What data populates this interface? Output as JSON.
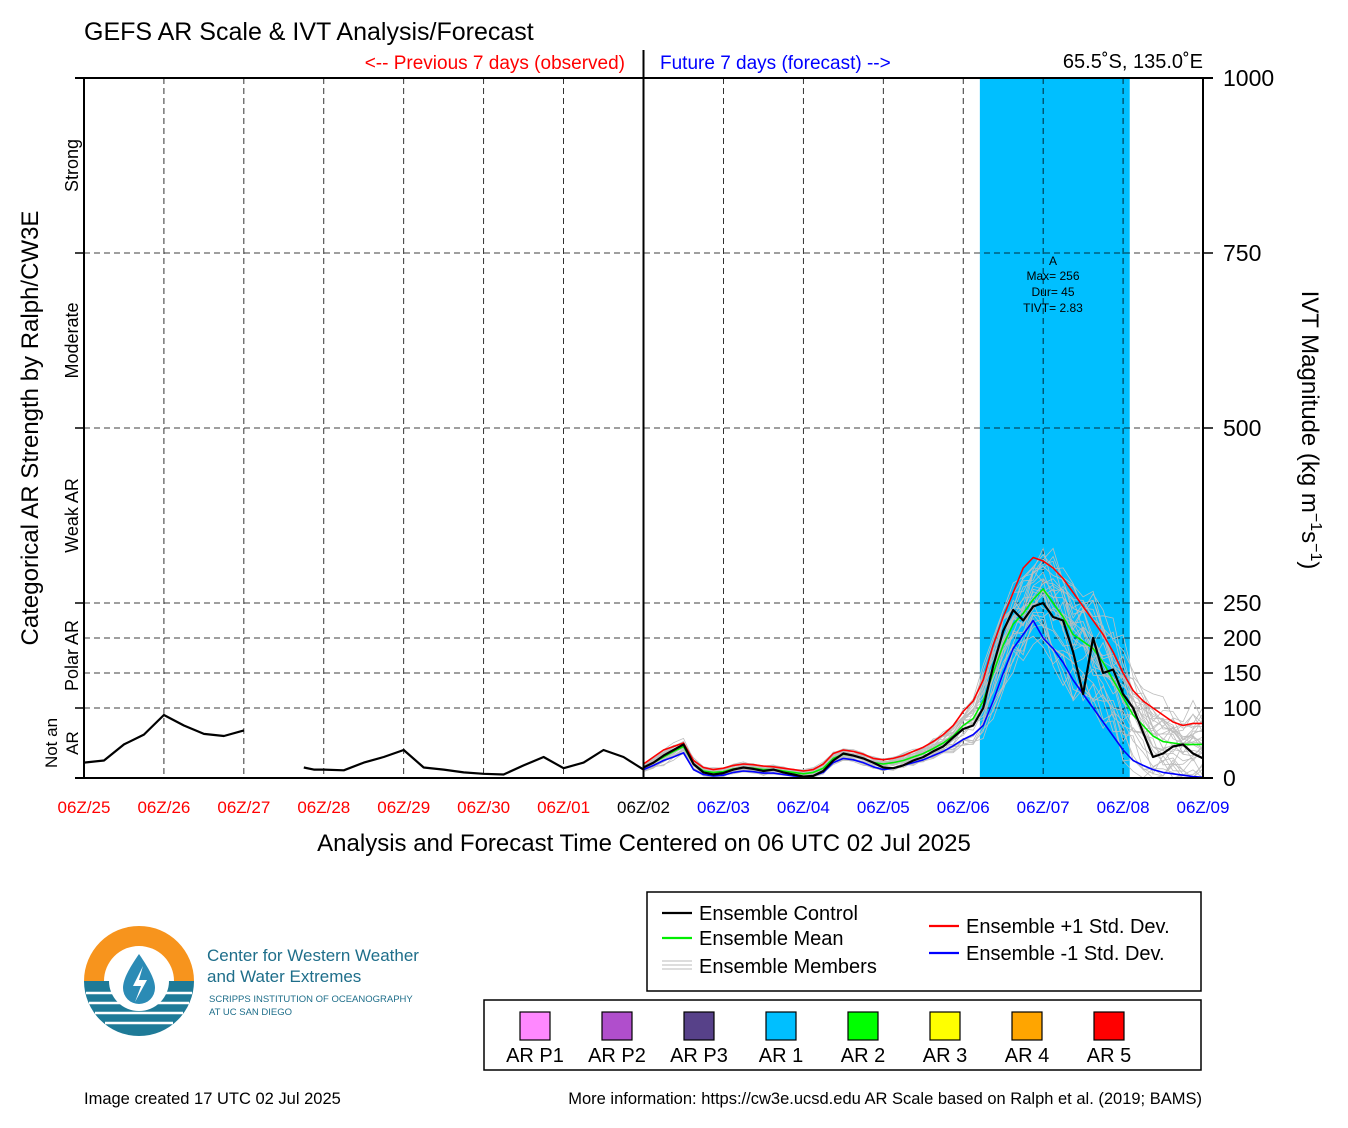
{
  "chart_data": {
    "type": "line",
    "title": "GEFS AR Scale & IVT Analysis/Forecast",
    "location": "65.5˚S, 135.0˚E",
    "previous_label": "<-- Previous 7 days (observed)",
    "future_label": "Future 7 days (forecast) -->",
    "xlabel": "Analysis and Forecast Time Centered on 06 UTC 02 Jul 2025",
    "ylabel_left": "Categorical AR Strength by Ralph/CW3E",
    "ylabel_right": "IVT Magnitude (kg m",
    "ylabel_right_sup1": "−1",
    "ylabel_right_mid": "s",
    "ylabel_right_sup2": "−1",
    "ylabel_right_end": ")",
    "xlim_hours": [
      -168,
      168
    ],
    "ylim": [
      0,
      1000
    ],
    "x_ticks": [
      {
        "label": "06Z/25",
        "hour": -168,
        "color": "#ff0000"
      },
      {
        "label": "06Z/26",
        "hour": -144,
        "color": "#ff0000"
      },
      {
        "label": "06Z/27",
        "hour": -120,
        "color": "#ff0000"
      },
      {
        "label": "06Z/28",
        "hour": -96,
        "color": "#ff0000"
      },
      {
        "label": "06Z/29",
        "hour": -72,
        "color": "#ff0000"
      },
      {
        "label": "06Z/30",
        "hour": -48,
        "color": "#ff0000"
      },
      {
        "label": "06Z/01",
        "hour": -24,
        "color": "#ff0000"
      },
      {
        "label": "06Z/02",
        "hour": 0,
        "color": "#000000"
      },
      {
        "label": "06Z/03",
        "hour": 24,
        "color": "#0000ff"
      },
      {
        "label": "06Z/04",
        "hour": 48,
        "color": "#0000ff"
      },
      {
        "label": "06Z/05",
        "hour": 72,
        "color": "#0000ff"
      },
      {
        "label": "06Z/06",
        "hour": 96,
        "color": "#0000ff"
      },
      {
        "label": "06Z/07",
        "hour": 120,
        "color": "#0000ff"
      },
      {
        "label": "06Z/08",
        "hour": 144,
        "color": "#0000ff"
      },
      {
        "label": "06Z/09",
        "hour": 168,
        "color": "#0000ff"
      }
    ],
    "y_ticks": [
      0,
      100,
      150,
      200,
      250,
      500,
      750,
      1000
    ],
    "categories": [
      {
        "label": "Strong",
        "from": 750,
        "to": 1000
      },
      {
        "label": "Moderate",
        "from": 500,
        "to": 750
      },
      {
        "label": "Weak AR",
        "from": 250,
        "to": 500
      },
      {
        "label": "Polar AR",
        "from": 100,
        "to": 250
      },
      {
        "label": "Not an",
        "label2": "AR",
        "from": 0,
        "to": 100
      }
    ],
    "ar_event": {
      "start_hour": 101,
      "end_hour": 146,
      "category": "AR 1",
      "color": "#00bfff",
      "label": "A",
      "max_text": "Max= 256",
      "dur_text": "Dur= 45",
      "tivt_text": "TIVT= 2.83"
    },
    "series": [
      {
        "name": "Ensemble Control",
        "color": "#000000",
        "x": [
          -168,
          -162,
          -156,
          -150,
          -144,
          -138,
          -132,
          -126,
          -120
        ],
        "y": [
          22,
          25,
          48,
          62,
          90,
          75,
          63,
          60,
          68
        ]
      },
      {
        "name": "Ensemble Control",
        "color": "#000000",
        "x": [
          -102,
          -99,
          -96,
          -90,
          -84,
          -78,
          -72,
          -66,
          -60,
          -54,
          -48,
          -42,
          -36,
          -30,
          -24,
          -18,
          -12,
          -6,
          0
        ],
        "y": [
          15,
          12,
          12,
          11,
          22,
          30,
          40,
          15,
          12,
          8,
          6,
          5,
          18,
          30,
          14,
          22,
          40,
          30,
          12
        ]
      },
      {
        "name": "Ensemble Control",
        "color": "#000000",
        "x": [
          0,
          3,
          6,
          9,
          12,
          15,
          18,
          21,
          24,
          27,
          30,
          33,
          36,
          39,
          42,
          45,
          48,
          51,
          54,
          57,
          60,
          63,
          66,
          69,
          72,
          75,
          78,
          81,
          84,
          87,
          90,
          93,
          96,
          99,
          102,
          105,
          108,
          111,
          114,
          117,
          120,
          123,
          126,
          129,
          132,
          135,
          138,
          141,
          144,
          147,
          150,
          153,
          156,
          159,
          162,
          165,
          168
        ],
        "y": [
          15,
          22,
          32,
          40,
          48,
          20,
          8,
          5,
          7,
          12,
          15,
          13,
          10,
          12,
          8,
          5,
          2,
          3,
          10,
          25,
          35,
          32,
          28,
          22,
          15,
          14,
          18,
          25,
          30,
          38,
          45,
          58,
          70,
          75,
          100,
          160,
          210,
          240,
          225,
          245,
          250,
          230,
          225,
          180,
          120,
          200,
          150,
          155,
          120,
          100,
          65,
          30,
          35,
          45,
          48,
          35,
          28
        ]
      },
      {
        "name": "Ensemble Mean",
        "color": "#00ee00",
        "x": [
          0,
          3,
          6,
          9,
          12,
          15,
          18,
          21,
          24,
          27,
          30,
          33,
          36,
          39,
          42,
          45,
          48,
          51,
          54,
          57,
          60,
          63,
          66,
          69,
          72,
          75,
          78,
          81,
          84,
          87,
          90,
          93,
          96,
          99,
          102,
          105,
          108,
          111,
          114,
          117,
          120,
          123,
          126,
          129,
          132,
          135,
          138,
          141,
          144,
          147,
          150,
          153,
          156,
          159,
          162,
          165,
          168
        ],
        "y": [
          15,
          22,
          30,
          38,
          45,
          20,
          10,
          8,
          9,
          13,
          15,
          14,
          12,
          12,
          10,
          8,
          6,
          8,
          14,
          28,
          34,
          32,
          28,
          22,
          20,
          22,
          25,
          30,
          35,
          42,
          50,
          60,
          75,
          85,
          110,
          150,
          190,
          220,
          235,
          255,
          270,
          250,
          230,
          205,
          195,
          185,
          165,
          140,
          115,
          90,
          75,
          60,
          52,
          50,
          48,
          48,
          48
        ]
      },
      {
        "name": "Ensemble +1 Std. Dev.",
        "color": "#ff0000",
        "x": [
          0,
          3,
          6,
          9,
          12,
          15,
          18,
          21,
          24,
          27,
          30,
          33,
          36,
          39,
          42,
          45,
          48,
          51,
          54,
          57,
          60,
          63,
          66,
          69,
          72,
          75,
          78,
          81,
          84,
          87,
          90,
          93,
          96,
          99,
          102,
          105,
          108,
          111,
          114,
          117,
          120,
          123,
          126,
          129,
          132,
          135,
          138,
          141,
          144,
          147,
          150,
          153,
          156,
          159,
          162,
          165,
          168
        ],
        "y": [
          20,
          30,
          40,
          45,
          50,
          25,
          15,
          12,
          14,
          18,
          20,
          19,
          17,
          16,
          14,
          12,
          10,
          12,
          20,
          35,
          40,
          38,
          34,
          28,
          26,
          28,
          32,
          38,
          44,
          52,
          62,
          75,
          95,
          110,
          140,
          190,
          230,
          265,
          300,
          315,
          310,
          300,
          285,
          265,
          245,
          225,
          205,
          180,
          150,
          125,
          110,
          100,
          90,
          80,
          75,
          78,
          78
        ]
      },
      {
        "name": "Ensemble -1 Std. Dev.",
        "color": "#0000ff",
        "x": [
          0,
          3,
          6,
          9,
          12,
          15,
          18,
          21,
          24,
          27,
          30,
          33,
          36,
          39,
          42,
          45,
          48,
          51,
          54,
          57,
          60,
          63,
          66,
          69,
          72,
          75,
          78,
          81,
          84,
          87,
          90,
          93,
          96,
          99,
          102,
          105,
          108,
          111,
          114,
          117,
          120,
          123,
          126,
          129,
          132,
          135,
          138,
          141,
          144,
          147,
          150,
          153,
          156,
          159,
          162,
          165,
          168
        ],
        "y": [
          12,
          18,
          25,
          30,
          36,
          12,
          5,
          3,
          4,
          8,
          10,
          9,
          7,
          7,
          5,
          3,
          2,
          3,
          8,
          22,
          28,
          26,
          22,
          16,
          12,
          14,
          18,
          22,
          26,
          32,
          38,
          46,
          55,
          62,
          75,
          110,
          150,
          185,
          205,
          225,
          200,
          185,
          165,
          140,
          120,
          100,
          80,
          60,
          40,
          25,
          18,
          12,
          8,
          6,
          4,
          2,
          1
        ]
      }
    ],
    "legend_lines": [
      {
        "label": "Ensemble Control",
        "color": "#000000"
      },
      {
        "label": "Ensemble Mean",
        "color": "#00ee00"
      },
      {
        "label": "Ensemble Members",
        "color": "#bbbbbb"
      },
      {
        "label": "Ensemble +1 Std. Dev.",
        "color": "#ff0000"
      },
      {
        "label": "Ensemble -1 Std. Dev.",
        "color": "#0000ff"
      }
    ],
    "ar_scale_legend": [
      {
        "label": "AR P1",
        "color": "#ff88ff"
      },
      {
        "label": "AR P2",
        "color": "#b04ecc"
      },
      {
        "label": "AR P3",
        "color": "#574189"
      },
      {
        "label": "AR 1",
        "color": "#00bfff"
      },
      {
        "label": "AR 2",
        "color": "#00ff00"
      },
      {
        "label": "AR 3",
        "color": "#ffff00"
      },
      {
        "label": "AR 4",
        "color": "#ffa500"
      },
      {
        "label": "AR 5",
        "color": "#ff0000"
      }
    ]
  },
  "logo": {
    "line1": "Center for Western Weather",
    "line2": "and Water Extremes",
    "line3": "SCRIPPS INSTITUTION OF OCEANOGRAPHY",
    "line4": "AT UC SAN DIEGO"
  },
  "footer": {
    "created": "Image created 17 UTC 02 Jul 2025",
    "info": "More information: https://cw3e.ucsd.edu AR Scale based on Ralph et al. (2019; BAMS)"
  }
}
